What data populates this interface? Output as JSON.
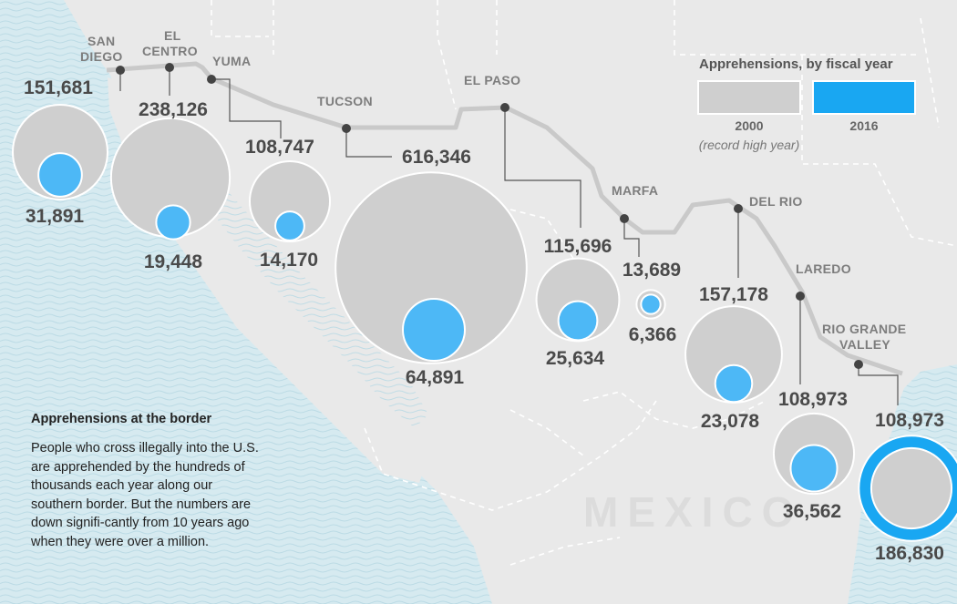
{
  "title": "Apprehensions at the border",
  "description": "People who cross illegally into the U.S. are apprehended by the hundreds of thousands each year along our southern border. But the numbers are down signifi-cantly from 10 years ago when they were over a million.",
  "legend": {
    "title": "Apprehensions, by fiscal year",
    "items": [
      {
        "year": "2000",
        "note": "(record high year)",
        "color": "#cfcfcf"
      },
      {
        "year": "2016",
        "note": "",
        "color": "#19a7f2"
      }
    ]
  },
  "country_label": "MEXICO",
  "colors": {
    "y2000": "#cfcfcf",
    "y2016": "#4db8f6",
    "y2016_highlight": "#19a7f2",
    "border": "#c9c9c9",
    "sea": "#d6eaf0",
    "land": "#e9e9e9"
  },
  "sectors": [
    {
      "id": "san-diego",
      "name_lines": [
        "SAN",
        "DIEGO"
      ],
      "y2000": 151681,
      "y2016": 31891,
      "y2000_label": "151,681",
      "y2016_label": "31,891"
    },
    {
      "id": "el-centro",
      "name_lines": [
        "EL",
        "CENTRO"
      ],
      "y2000": 238126,
      "y2016": 19448,
      "y2000_label": "238,126",
      "y2016_label": "19,448"
    },
    {
      "id": "yuma",
      "name_lines": [
        "YUMA"
      ],
      "y2000": 108747,
      "y2016": 14170,
      "y2000_label": "108,747",
      "y2016_label": "14,170"
    },
    {
      "id": "tucson",
      "name_lines": [
        "TUCSON"
      ],
      "y2000": 616346,
      "y2016": 64891,
      "y2000_label": "616,346",
      "y2016_label": "64,891"
    },
    {
      "id": "el-paso",
      "name_lines": [
        "EL PASO"
      ],
      "y2000": 115696,
      "y2016": 25634,
      "y2000_label": "115,696",
      "y2016_label": "25,634"
    },
    {
      "id": "marfa",
      "name_lines": [
        "MARFA"
      ],
      "y2000": 13689,
      "y2016": 6366,
      "y2000_label": "13,689",
      "y2016_label": "6,366"
    },
    {
      "id": "del-rio",
      "name_lines": [
        "DEL RIO"
      ],
      "y2000": 157178,
      "y2016": 23078,
      "y2000_label": "157,178",
      "y2016_label": "23,078"
    },
    {
      "id": "laredo",
      "name_lines": [
        "LAREDO"
      ],
      "y2000": 108973,
      "y2016": 36562,
      "y2000_label": "108,973",
      "y2016_label": "36,562"
    },
    {
      "id": "rio-grande-valley",
      "name_lines": [
        "RIO GRANDE",
        "VALLEY"
      ],
      "y2000": 108973,
      "y2016": 186830,
      "y2000_label": "108,973",
      "y2016_label": "186,830"
    }
  ]
}
